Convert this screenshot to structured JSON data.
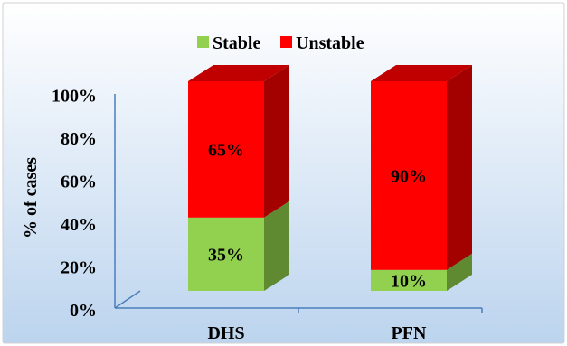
{
  "chart_data": {
    "type": "bar",
    "stacked": true,
    "three_d": true,
    "categories": [
      "DHS",
      "PFN"
    ],
    "series": [
      {
        "name": "Stable",
        "values": [
          35,
          10
        ],
        "value_labels": [
          "35%",
          "10%"
        ],
        "color": "#92d050",
        "side_color": "#5f8a32",
        "top_color": "#a6d96a"
      },
      {
        "name": "Unstable",
        "values": [
          65,
          90
        ],
        "value_labels": [
          "65%",
          "90%"
        ],
        "color": "#ff0000",
        "side_color": "#a30000",
        "top_color": "#c00000"
      }
    ],
    "ylabel": "% of cases",
    "xlabel": "",
    "ylim": [
      0,
      100
    ],
    "yticks": [
      "0%",
      "20%",
      "40%",
      "60%",
      "80%",
      "100%"
    ],
    "legend_position": "top",
    "grid": false,
    "axis_color": "#4a7ebb",
    "background_gradient": [
      "#ffffff",
      "#bcd4ee"
    ],
    "border_color": "#d0d0d0"
  }
}
